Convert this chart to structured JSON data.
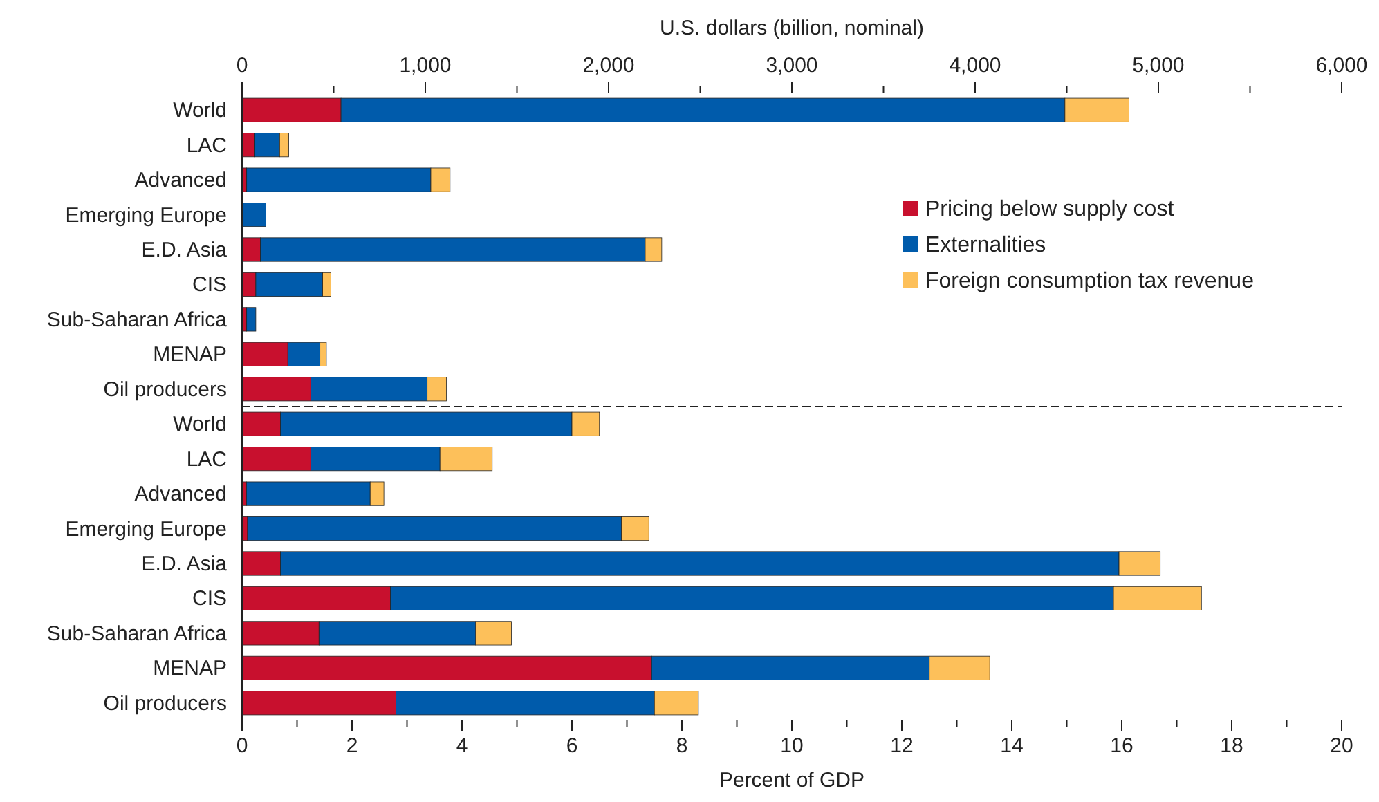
{
  "chart_data": [
    {
      "type": "bar",
      "orientation": "horizontal",
      "stacked": true,
      "legend": "right",
      "x2label": "U.S. dollars (billion, nominal)",
      "x2lim": [
        0,
        6000
      ],
      "x2ticks": [
        0,
        {
          "value": 500,
          "label": null
        },
        {
          "value": 1000,
          "label": "1,000"
        },
        {
          "value": 1500,
          "label": null
        },
        {
          "value": 2000,
          "label": "2,000"
        },
        {
          "value": 2500,
          "label": null
        },
        {
          "value": 3000,
          "label": "3,000"
        },
        {
          "value": 3500,
          "label": null
        },
        {
          "value": 4000,
          "label": "4,000"
        },
        {
          "value": 4500,
          "label": null
        },
        {
          "value": 5000,
          "label": "5,000"
        },
        {
          "value": 5500,
          "label": null
        },
        {
          "value": 6000,
          "label": "6,000"
        }
      ],
      "categories": [
        "World",
        "LAC",
        "Advanced",
        "Emerging Europe",
        "E.D. Asia",
        "CIS",
        "Sub-Saharan Africa",
        "MENAP",
        "Oil producers"
      ],
      "series": [
        {
          "name": "Pricing below supply cost",
          "color": "#c8102e",
          "axis": "x2",
          "values": [
            540,
            70,
            25,
            null,
            100,
            75,
            25,
            250,
            375
          ]
        },
        {
          "name": "Externalities",
          "color": "#005bab",
          "axis": "x2",
          "values": [
            3950,
            135,
            1005,
            130,
            2100,
            365,
            50,
            175,
            635
          ]
        },
        {
          "name": "Foreign consumption tax revenue",
          "color": "#fdc05a",
          "axis": "x2",
          "values": [
            350,
            50,
            105,
            null,
            90,
            45,
            null,
            35,
            105
          ]
        }
      ]
    },
    {
      "type": "bar",
      "orientation": "horizontal",
      "stacked": true,
      "xlabel": "Percent of GDP",
      "xlim": [
        0,
        20
      ],
      "xticks": [
        0,
        {
          "value": 1,
          "label": null
        },
        2,
        {
          "value": 3,
          "label": null
        },
        4,
        {
          "value": 5,
          "label": null
        },
        6,
        {
          "value": 7,
          "label": null
        },
        8,
        {
          "value": 9,
          "label": null
        },
        10,
        {
          "value": 11,
          "label": null
        },
        12,
        {
          "value": 13,
          "label": null
        },
        14,
        {
          "value": 15,
          "label": null
        },
        16,
        {
          "value": 17,
          "label": null
        },
        18,
        {
          "value": 19,
          "label": null
        },
        20
      ],
      "categories": [
        "World",
        "LAC",
        "Advanced",
        "Emerging Europe",
        "E.D. Asia",
        "CIS",
        "Sub-Saharan Africa",
        "MENAP",
        "Oil producers"
      ],
      "series": [
        {
          "color": "#c8102e",
          "values": [
            0.7,
            1.25,
            0.08,
            0.1,
            0.7,
            2.7,
            1.4,
            7.45,
            2.8
          ]
        },
        {
          "color": "#005bab",
          "values": [
            5.3,
            2.35,
            2.25,
            6.8,
            15.25,
            13.15,
            2.85,
            5.05,
            4.7
          ]
        },
        {
          "color": "#fdc05a",
          "values": [
            0.5,
            0.95,
            0.25,
            0.5,
            0.75,
            1.6,
            0.65,
            1.1,
            0.8
          ]
        }
      ]
    }
  ]
}
